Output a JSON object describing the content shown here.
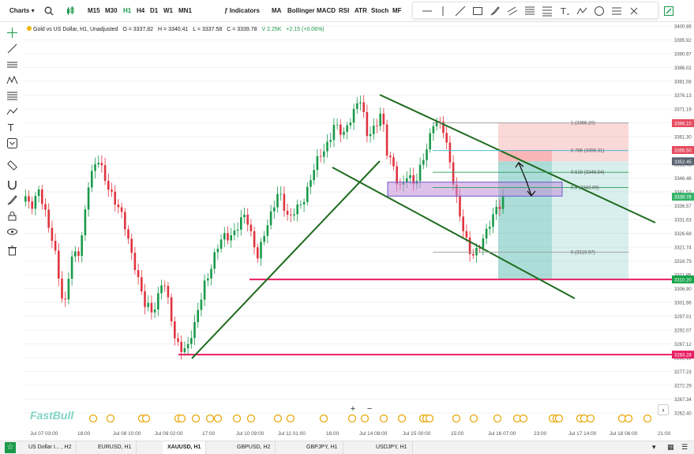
{
  "toolbar": {
    "charts_label": "Charts",
    "intervals": [
      "M15",
      "M30",
      "H1",
      "H4",
      "D1",
      "W1",
      "MN1"
    ],
    "active_interval": "H1",
    "indicators_label": "Indicators",
    "studies": [
      "MA",
      "Bollinger",
      "MACD",
      "RSI",
      "ATR",
      "Stoch",
      "MF"
    ]
  },
  "legend": {
    "symbol": "Gold vs US Dollar, H1, Unadjusted",
    "open": "O = 3337.82",
    "high": "H = 3340.41",
    "low": "L = 3337.58",
    "close": "C = 3339.78",
    "volume": "V 2.25K",
    "change": "+2.15 (+0.06%)"
  },
  "price_axis": {
    "ticks": [
      "3400.86",
      "3395.92",
      "3390.97",
      "3386.02",
      "3381.08",
      "3376.13",
      "3371.19",
      "3366.24",
      "3361.30",
      "3356.35",
      "3351.41",
      "3346.46",
      "3341.52",
      "3336.57",
      "3331.63",
      "3326.68",
      "3321.74",
      "3316.79",
      "3311.85",
      "3306.90",
      "3301.96",
      "3297.01",
      "3292.07",
      "3287.12",
      "3282.18",
      "3277.23",
      "3272.29",
      "3267.34",
      "3262.40"
    ],
    "labels": [
      {
        "text": "3366.10",
        "color": "#e54b5f",
        "price": 3366.1
      },
      {
        "text": "3356.50",
        "color": "#e54b5f",
        "price": 3356.5
      },
      {
        "text": "3352.45",
        "color": "#5a6270",
        "price": 3352.45
      },
      {
        "text": "3339.78",
        "color": "#37b36a",
        "price": 3339.78
      },
      {
        "text": "3310.20",
        "color": "#16a34a",
        "price": 3310.2
      },
      {
        "text": "3283.28",
        "color": "#e91e63",
        "price": 3283.28
      }
    ]
  },
  "time_axis": {
    "labels": [
      "Jul 07 03:00",
      "18:00",
      "Jul 08 10:00",
      "Jul 09 02:00",
      "17:00",
      "Jul 10 09:00",
      "Jul 11 01:00",
      "16:00",
      "Jul 14 08:00",
      "Jul 15 00:00",
      "15:00",
      "Jul 16 07:00",
      "23:00",
      "Jul 17 14:00",
      "Jul 18 06:00",
      "21:00"
    ]
  },
  "fib": {
    "levels": [
      {
        "label": "1 (3366.20)",
        "price": 3366.2
      },
      {
        "label": "0.786 (3356.31)",
        "price": 3356.31
      },
      {
        "label": "0.618 (3348.54)",
        "price": 3348.54
      },
      {
        "label": "0.5 (3343.09)",
        "price": 3343.09
      },
      {
        "label": "0 (3319.97)",
        "price": 3319.97
      }
    ]
  },
  "position_tool": {
    "entry": 3352.45,
    "stop": 3366.1,
    "target": 3310.2
  },
  "horizontal_lines": [
    {
      "price": 3310.2,
      "color": "#e91e63"
    },
    {
      "price": 3283.28,
      "color": "#e91e63"
    }
  ],
  "price_scale": {
    "max": 3400.86,
    "min": 3262.4
  },
  "watermark": "FastBull",
  "zoom": {
    "plus": "+",
    "minus": "−"
  },
  "tabs": [
    {
      "label": "US Dollar I... , H2",
      "active": false
    },
    {
      "label": "EURUSD, H1",
      "active": false
    },
    {
      "label": "XAUUSD, H1",
      "active": true
    },
    {
      "label": "GBPUSD, H2",
      "active": false
    },
    {
      "label": "GBPJPY, H1",
      "active": false
    },
    {
      "label": "USDJPY, H1",
      "active": false
    }
  ],
  "colors": {
    "bull": "#1a9a4a",
    "bear": "#e0343f",
    "trend": "#1e6b1e",
    "zone": "#c58fd9"
  }
}
